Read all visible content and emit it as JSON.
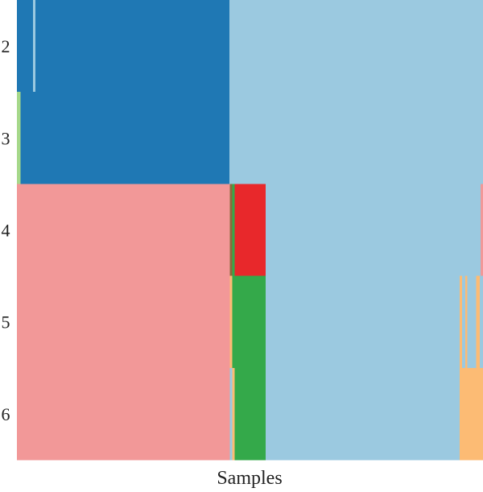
{
  "chart_data": {
    "type": "heatmap",
    "xlabel": "Samples",
    "ylabel": "",
    "rows": [
      "2",
      "3",
      "4",
      "5",
      "6"
    ],
    "colors": {
      "dark_blue": "#1f78b4",
      "light_blue": "#9bc9e0",
      "light_green": "#a6d88a",
      "pink": "#f29898",
      "red": "#e8282b",
      "green": "#34a94a",
      "orange": "#fcbb74",
      "olive": "#8a6a3a"
    },
    "segments": [
      {
        "row": "2",
        "x0": 0.0,
        "x1": 0.456,
        "color": "dark_blue"
      },
      {
        "row": "2",
        "x0": 0.456,
        "x1": 1.0,
        "color": "light_blue"
      },
      {
        "row": "2",
        "x0": 0.0345,
        "x1": 0.0396,
        "color": "light_blue"
      },
      {
        "row": "3",
        "x0": 0.0,
        "x1": 0.008,
        "color": "light_green"
      },
      {
        "row": "3",
        "x0": 0.008,
        "x1": 0.456,
        "color": "dark_blue"
      },
      {
        "row": "3",
        "x0": 0.456,
        "x1": 1.0,
        "color": "light_blue"
      },
      {
        "row": "4",
        "x0": 0.0,
        "x1": 0.457,
        "color": "pink"
      },
      {
        "row": "4",
        "x0": 0.457,
        "x1": 0.462,
        "color": "olive"
      },
      {
        "row": "4",
        "x0": 0.462,
        "x1": 0.467,
        "color": "green"
      },
      {
        "row": "4",
        "x0": 0.467,
        "x1": 0.534,
        "color": "red"
      },
      {
        "row": "4",
        "x0": 0.534,
        "x1": 0.995,
        "color": "light_blue"
      },
      {
        "row": "4",
        "x0": 0.995,
        "x1": 1.0,
        "color": "pink"
      },
      {
        "row": "5",
        "x0": 0.0,
        "x1": 0.457,
        "color": "pink"
      },
      {
        "row": "5",
        "x0": 0.457,
        "x1": 0.462,
        "color": "orange"
      },
      {
        "row": "5",
        "x0": 0.462,
        "x1": 0.534,
        "color": "green"
      },
      {
        "row": "5",
        "x0": 0.534,
        "x1": 0.95,
        "color": "light_blue"
      },
      {
        "row": "5",
        "x0": 0.95,
        "x1": 0.955,
        "color": "orange"
      },
      {
        "row": "5",
        "x0": 0.955,
        "x1": 0.962,
        "color": "light_blue"
      },
      {
        "row": "5",
        "x0": 0.962,
        "x1": 0.966,
        "color": "orange"
      },
      {
        "row": "5",
        "x0": 0.966,
        "x1": 0.985,
        "color": "light_blue"
      },
      {
        "row": "5",
        "x0": 0.985,
        "x1": 0.993,
        "color": "orange"
      },
      {
        "row": "5",
        "x0": 0.993,
        "x1": 1.0,
        "color": "light_blue"
      },
      {
        "row": "6",
        "x0": 0.0,
        "x1": 0.457,
        "color": "pink"
      },
      {
        "row": "6",
        "x0": 0.457,
        "x1": 0.462,
        "color": "light_blue"
      },
      {
        "row": "6",
        "x0": 0.462,
        "x1": 0.467,
        "color": "orange"
      },
      {
        "row": "6",
        "x0": 0.467,
        "x1": 0.534,
        "color": "green"
      },
      {
        "row": "6",
        "x0": 0.534,
        "x1": 0.95,
        "color": "light_blue"
      },
      {
        "row": "6",
        "x0": 0.95,
        "x1": 1.0,
        "color": "orange"
      }
    ]
  }
}
